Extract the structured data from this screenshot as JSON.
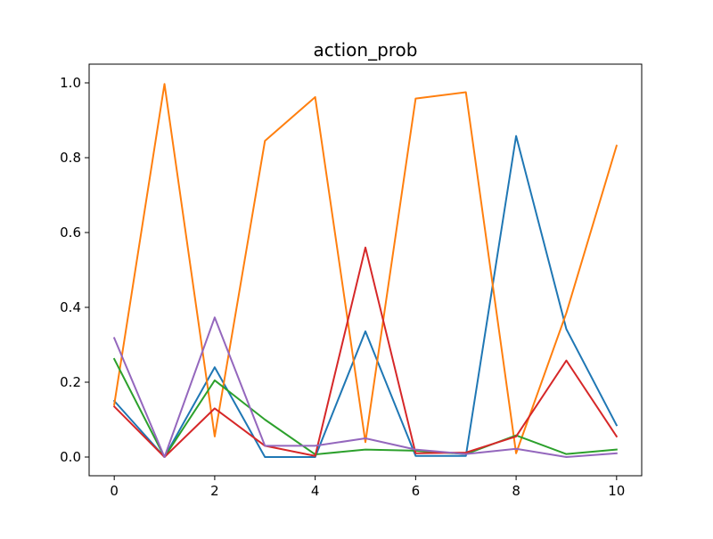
{
  "chart_data": {
    "type": "line",
    "title": "action_prob",
    "xlabel": "",
    "ylabel": "",
    "xlim": [
      -0.5,
      10.5
    ],
    "ylim": [
      -0.05,
      1.05
    ],
    "xticks": [
      0,
      2,
      4,
      6,
      8,
      10
    ],
    "yticks": [
      0.0,
      0.2,
      0.4,
      0.6,
      0.8,
      1.0
    ],
    "ytick_labels": [
      "0.0",
      "0.2",
      "0.4",
      "0.6",
      "0.8",
      "1.0"
    ],
    "grid": false,
    "x": [
      0,
      1,
      2,
      3,
      4,
      5,
      6,
      7,
      8,
      9,
      10
    ],
    "series": [
      {
        "color": "#1f77b4",
        "values": [
          0.15,
          0.0,
          0.24,
          0.0,
          0.0,
          0.336,
          0.003,
          0.003,
          0.858,
          0.342,
          0.085
        ]
      },
      {
        "color": "#ff7f0e",
        "values": [
          0.14,
          0.997,
          0.055,
          0.845,
          0.962,
          0.04,
          0.958,
          0.975,
          0.01,
          0.385,
          0.832
        ]
      },
      {
        "color": "#2ca02c",
        "values": [
          0.262,
          0.0,
          0.205,
          0.1,
          0.007,
          0.02,
          0.017,
          0.008,
          0.058,
          0.008,
          0.02
        ]
      },
      {
        "color": "#d62728",
        "values": [
          0.135,
          0.0,
          0.13,
          0.03,
          0.003,
          0.56,
          0.01,
          0.012,
          0.055,
          0.258,
          0.055
        ]
      },
      {
        "color": "#9467bd",
        "values": [
          0.318,
          0.0,
          0.373,
          0.03,
          0.03,
          0.05,
          0.02,
          0.008,
          0.022,
          0.0,
          0.01
        ]
      }
    ]
  }
}
